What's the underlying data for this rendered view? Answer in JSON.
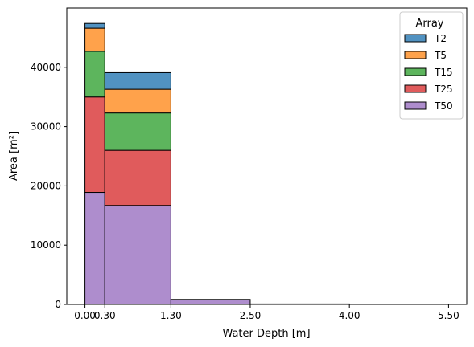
{
  "chart_data": {
    "type": "bar",
    "stacked": true,
    "xlabel": "Water Depth [m]",
    "ylabel": "Area [m²]",
    "x_tick_labels": [
      "0.00",
      "0.30",
      "1.30",
      "2.50",
      "4.00",
      "5.50"
    ],
    "x_tick_values": [
      0.0,
      0.3,
      1.3,
      2.5,
      4.0,
      5.5
    ],
    "y_ticks": [
      0,
      10000,
      20000,
      30000,
      40000
    ],
    "ylim": [
      0,
      50000
    ],
    "bins": [
      [
        0.0,
        0.3
      ],
      [
        0.3,
        1.3
      ],
      [
        1.3,
        2.5
      ],
      [
        2.5,
        4.0
      ],
      [
        4.0,
        5.5
      ]
    ],
    "series": [
      {
        "name": "T50",
        "color": "#ae8dcd",
        "values": [
          18900,
          16700,
          750,
          80,
          20
        ]
      },
      {
        "name": "T25",
        "color": "#e05b5c",
        "values": [
          16100,
          9300,
          30,
          0,
          0
        ]
      },
      {
        "name": "T15",
        "color": "#5db55d",
        "values": [
          7700,
          6300,
          20,
          0,
          0
        ]
      },
      {
        "name": "T5",
        "color": "#ffa24b",
        "values": [
          3900,
          4000,
          20,
          0,
          0
        ]
      },
      {
        "name": "T2",
        "color": "#5192c1",
        "values": [
          800,
          2800,
          20,
          0,
          0
        ]
      }
    ],
    "legend": {
      "title": "Array",
      "position": "top-right",
      "order": [
        "T2",
        "T5",
        "T15",
        "T25",
        "T50"
      ]
    },
    "grid": false
  }
}
